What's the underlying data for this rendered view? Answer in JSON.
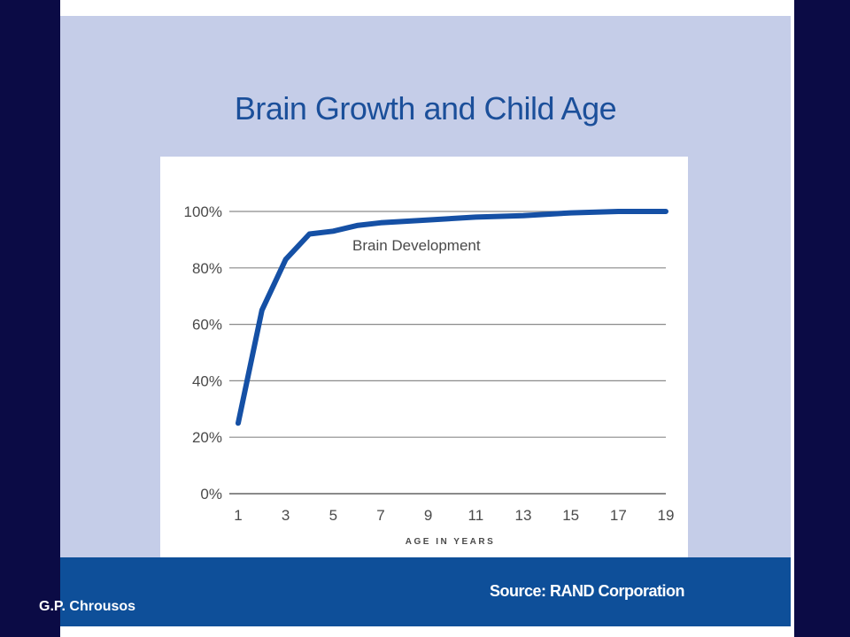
{
  "slide": {
    "title": "Brain Growth and Child Age",
    "source": "Source: RAND Corporation",
    "author": "G.P. Chrousos"
  },
  "colors": {
    "background": "#0b0b45",
    "panel": "#c5cde8",
    "band": "#0e4f99",
    "line": "#1550a5",
    "title": "#1b4f9a"
  },
  "chart_data": {
    "type": "line",
    "title": "",
    "xlabel": "AGE IN YEARS",
    "ylabel": "",
    "x_ticks": [
      1,
      3,
      5,
      7,
      9,
      11,
      13,
      15,
      17,
      19
    ],
    "y_ticks": [
      "0%",
      "20%",
      "40%",
      "60%",
      "80%",
      "100%"
    ],
    "y_tick_values": [
      0,
      20,
      40,
      60,
      80,
      100
    ],
    "xlim": [
      1,
      19
    ],
    "ylim": [
      0,
      100
    ],
    "grid": true,
    "annotation": "Brain Development",
    "series": [
      {
        "name": "Brain Development",
        "x": [
          1,
          2,
          3,
          4,
          5,
          6,
          7,
          9,
          11,
          13,
          15,
          17,
          19
        ],
        "y": [
          25,
          65,
          83,
          92,
          93,
          95,
          96,
          97,
          98,
          98.5,
          99.5,
          100,
          100
        ]
      }
    ]
  }
}
